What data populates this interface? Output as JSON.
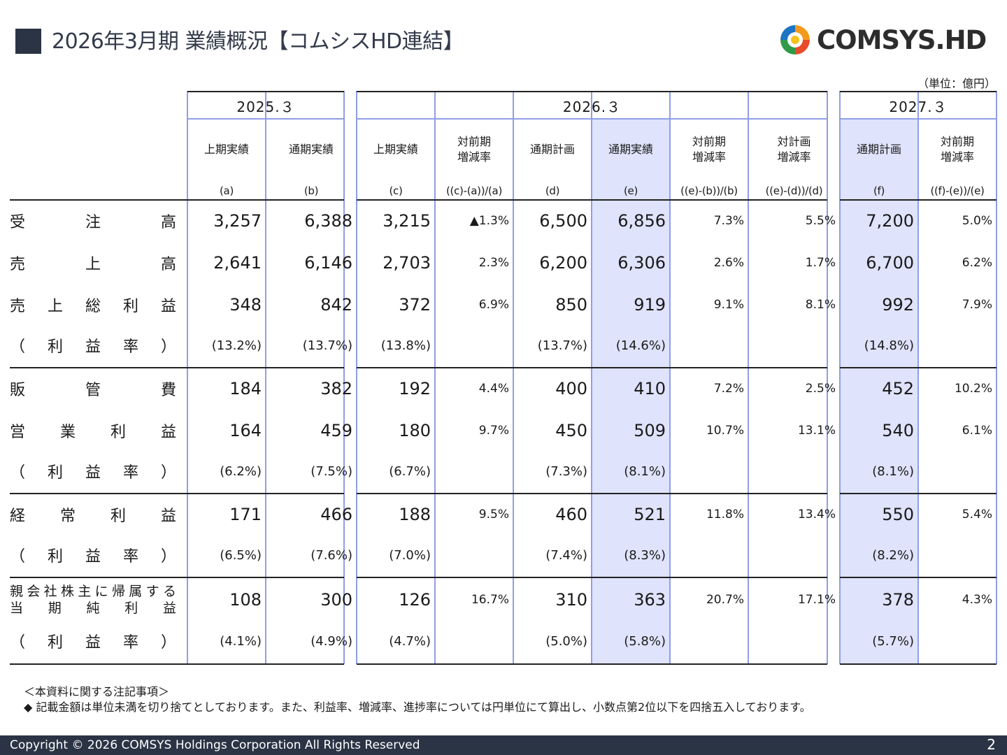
{
  "header": {
    "title": "2026年3月期 業績概況【コムシスHD連結】",
    "logo_text": "COMSYS.HD",
    "unit": "（単位：億円）"
  },
  "table": {
    "years": [
      "2025.３",
      "2026.３",
      "2027.３"
    ],
    "columns": [
      {
        "label": [
          "上期実績"
        ],
        "sub": "(a)"
      },
      {
        "label": [
          "通期実績"
        ],
        "sub": "(b)"
      },
      {
        "label": [
          "上期実績"
        ],
        "sub": "(c)"
      },
      {
        "label": [
          "対前期",
          "増減率"
        ],
        "sub": "((c)-(a))/(a)"
      },
      {
        "label": [
          "通期計画"
        ],
        "sub": "(d)"
      },
      {
        "label": [
          "通期実績"
        ],
        "sub": "(e)"
      },
      {
        "label": [
          "対前期",
          "増減率"
        ],
        "sub": "((e)-(b))/(b)"
      },
      {
        "label": [
          "対計画",
          "増減率"
        ],
        "sub": "((e)-(d))/(d)"
      },
      {
        "label": [
          "通期計画"
        ],
        "sub": "(f)"
      },
      {
        "label": [
          "対前期",
          "増減率"
        ],
        "sub": "((f)-(e))/(e)"
      }
    ],
    "rows": [
      {
        "label": [
          "受",
          "注",
          "高"
        ],
        "kind": "main",
        "cells": [
          "3,257",
          "6,388",
          "3,215",
          "▲1.3%",
          "6,500",
          "6,856",
          "7.3%",
          "5.5%",
          "7,200",
          "5.0%"
        ]
      },
      {
        "label": [
          "売",
          "上",
          "高"
        ],
        "kind": "main",
        "cells": [
          "2,641",
          "6,146",
          "2,703",
          "2.3%",
          "6,200",
          "6,306",
          "2.6%",
          "1.7%",
          "6,700",
          "6.2%"
        ]
      },
      {
        "label": [
          "売",
          "上",
          "総",
          "利",
          "益"
        ],
        "kind": "main",
        "cells": [
          "348",
          "842",
          "372",
          "6.9%",
          "850",
          "919",
          "9.1%",
          "8.1%",
          "992",
          "7.9%"
        ]
      },
      {
        "label": [
          "（",
          "利",
          "益",
          "率",
          "）"
        ],
        "kind": "paren",
        "cells": [
          "(13.2%)",
          "(13.7%)",
          "(13.8%)",
          "",
          "(13.7%)",
          "(14.6%)",
          "",
          "",
          "(14.8%)",
          ""
        ]
      },
      {
        "label": [
          "販",
          "管",
          "費"
        ],
        "kind": "main",
        "cells": [
          "184",
          "382",
          "192",
          "4.4%",
          "400",
          "410",
          "7.2%",
          "2.5%",
          "452",
          "10.2%"
        ]
      },
      {
        "label": [
          "営",
          "業",
          "利",
          "益"
        ],
        "kind": "main",
        "cells": [
          "164",
          "459",
          "180",
          "9.7%",
          "450",
          "509",
          "10.7%",
          "13.1%",
          "540",
          "6.1%"
        ]
      },
      {
        "label": [
          "（",
          "利",
          "益",
          "率",
          "）"
        ],
        "kind": "paren",
        "cells": [
          "(6.2%)",
          "(7.5%)",
          "(6.7%)",
          "",
          "(7.3%)",
          "(8.1%)",
          "",
          "",
          "(8.1%)",
          ""
        ]
      },
      {
        "label": [
          "経",
          "常",
          "利",
          "益"
        ],
        "kind": "main",
        "cells": [
          "171",
          "466",
          "188",
          "9.5%",
          "460",
          "521",
          "11.8%",
          "13.4%",
          "550",
          "5.4%"
        ]
      },
      {
        "label": [
          "（",
          "利",
          "益",
          "率",
          "）"
        ],
        "kind": "paren",
        "cells": [
          "(6.5%)",
          "(7.6%)",
          "(7.0%)",
          "",
          "(7.4%)",
          "(8.3%)",
          "",
          "",
          "(8.2%)",
          ""
        ]
      },
      {
        "label": [
          "親会社株主に帰属する",
          "当期純利益"
        ],
        "kind": "main2",
        "cells": [
          "108",
          "300",
          "126",
          "16.7%",
          "310",
          "363",
          "20.7%",
          "17.1%",
          "378",
          "4.3%"
        ]
      },
      {
        "label": [
          "（",
          "利",
          "益",
          "率",
          "）"
        ],
        "kind": "paren",
        "cells": [
          "(4.1%)",
          "(4.9%)",
          "(4.7%)",
          "",
          "(5.0%)",
          "(5.8%)",
          "",
          "",
          "(5.7%)",
          ""
        ]
      }
    ]
  },
  "notes": {
    "heading": "＜本資料に関する注記事項＞",
    "item": "◆ 記載金額は単位未満を切り捨てとしております。また、利益率、増減率、進捗率については円単位にて算出し、小数点第2位以下を四捨五入しております。"
  },
  "footer": {
    "copyright": "Copyright © 2026 COMSYS Holdings Corporation All Rights Reserved",
    "page": "2"
  },
  "colors": {
    "header_blue": "#dfe3fb",
    "grid_line": "#8f9ee8",
    "footer_bg": "#2b3445"
  }
}
